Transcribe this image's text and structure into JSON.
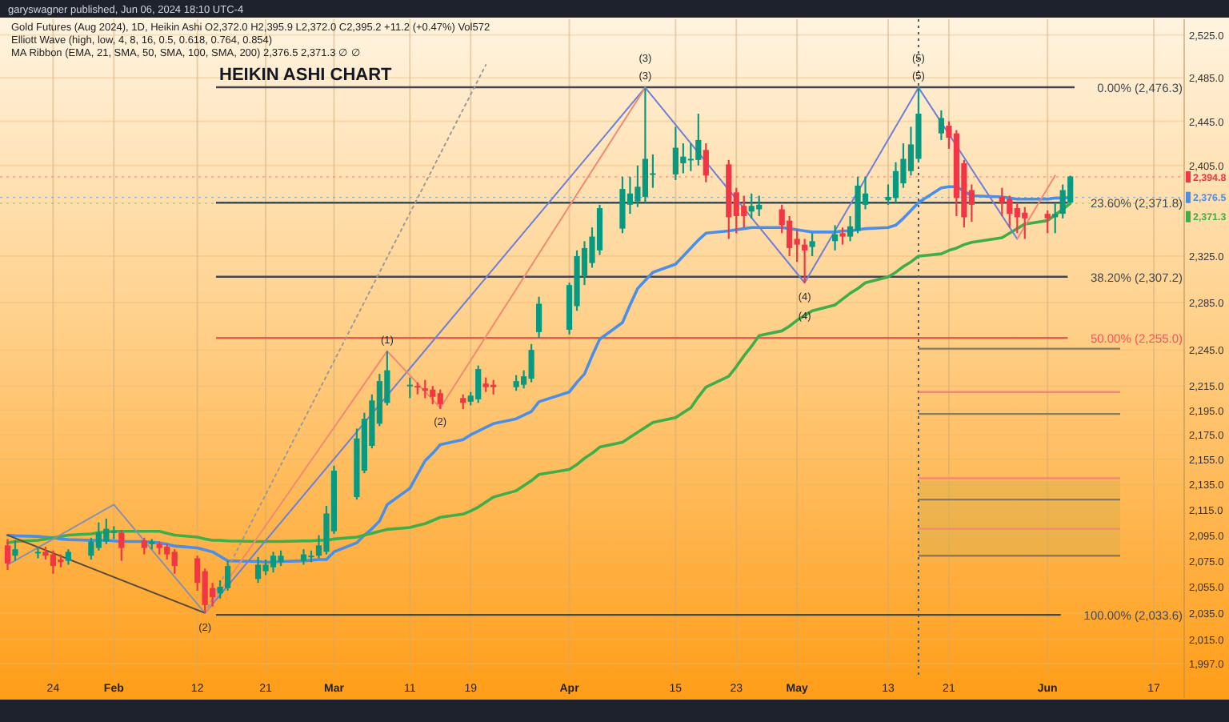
{
  "chart_data": {
    "type": "candlestick",
    "title": "HEIKIN ASHI CHART",
    "subtitle": "garyswagner published, Jun 06, 2024 18:10 UTC-4",
    "x": [
      "2024-01-18",
      "2024-01-19",
      "2024-01-22",
      "2024-01-23",
      "2024-01-24",
      "2024-01-25",
      "2024-01-26",
      "2024-01-29",
      "2024-01-30",
      "2024-01-31",
      "2024-02-01",
      "2024-02-02",
      "2024-02-05",
      "2024-02-06",
      "2024-02-07",
      "2024-02-08",
      "2024-02-09",
      "2024-02-12",
      "2024-02-13",
      "2024-02-14",
      "2024-02-15",
      "2024-02-16",
      "2024-02-20",
      "2024-02-21",
      "2024-02-22",
      "2024-02-23",
      "2024-02-26",
      "2024-02-27",
      "2024-02-28",
      "2024-02-29",
      "2024-03-01",
      "2024-03-04",
      "2024-03-05",
      "2024-03-06",
      "2024-03-07",
      "2024-03-08",
      "2024-03-11",
      "2024-03-12",
      "2024-03-13",
      "2024-03-14",
      "2024-03-15",
      "2024-03-18",
      "2024-03-19",
      "2024-03-20",
      "2024-03-21",
      "2024-03-22",
      "2024-03-25",
      "2024-03-26",
      "2024-03-27",
      "2024-03-28",
      "2024-04-01",
      "2024-04-02",
      "2024-04-03",
      "2024-04-04",
      "2024-04-05",
      "2024-04-08",
      "2024-04-09",
      "2024-04-10",
      "2024-04-11",
      "2024-04-12",
      "2024-04-15",
      "2024-04-16",
      "2024-04-17",
      "2024-04-18",
      "2024-04-19",
      "2024-04-22",
      "2024-04-23",
      "2024-04-24",
      "2024-04-25",
      "2024-04-26",
      "2024-04-29",
      "2024-04-30",
      "2024-05-01",
      "2024-05-02",
      "2024-05-03",
      "2024-05-06",
      "2024-05-07",
      "2024-05-08",
      "2024-05-09",
      "2024-05-10",
      "2024-05-13",
      "2024-05-14",
      "2024-05-15",
      "2024-05-16",
      "2024-05-17",
      "2024-05-20",
      "2024-05-21",
      "2024-05-22",
      "2024-05-23",
      "2024-05-24",
      "2024-05-28",
      "2024-05-29",
      "2024-05-30",
      "2024-05-31",
      "2024-06-03",
      "2024-06-04",
      "2024-06-05",
      "2024-06-06"
    ],
    "ohlc": [
      [
        2087,
        2092,
        2068,
        2073
      ],
      [
        2079,
        2091,
        2075,
        2084
      ],
      [
        2081,
        2086,
        2077,
        2082
      ],
      [
        2082,
        2086,
        2076,
        2079
      ],
      [
        2080,
        2083,
        2065,
        2071
      ],
      [
        2076,
        2080,
        2070,
        2074
      ],
      [
        2075,
        2084,
        2072,
        2082
      ],
      [
        2079,
        2093,
        2076,
        2090
      ],
      [
        2085,
        2105,
        2083,
        2097
      ],
      [
        2090,
        2108,
        2088,
        2100
      ],
      [
        2097,
        2102,
        2092,
        2098
      ],
      [
        2097,
        2099,
        2075,
        2085
      ],
      [
        2091,
        2093,
        2080,
        2085
      ],
      [
        2088,
        2092,
        2084,
        2090
      ],
      [
        2088,
        2090,
        2080,
        2085
      ],
      [
        2086,
        2088,
        2076,
        2080
      ],
      [
        2082,
        2084,
        2065,
        2071
      ],
      [
        2077,
        2079,
        2052,
        2058
      ],
      [
        2067,
        2069,
        2035,
        2041
      ],
      [
        2054,
        2058,
        2040,
        2047
      ],
      [
        2050,
        2060,
        2046,
        2055
      ],
      [
        2054,
        2075,
        2052,
        2071
      ],
      [
        2061,
        2078,
        2058,
        2072
      ],
      [
        2067,
        2076,
        2064,
        2072
      ],
      [
        2070,
        2082,
        2066,
        2079
      ],
      [
        2074,
        2083,
        2071,
        2079
      ],
      [
        2075,
        2084,
        2072,
        2080
      ],
      [
        2078,
        2083,
        2074,
        2079
      ],
      [
        2079,
        2095,
        2077,
        2087
      ],
      [
        2082,
        2118,
        2080,
        2112
      ],
      [
        2098,
        2150,
        2096,
        2146
      ],
      [
        2125,
        2180,
        2123,
        2172
      ],
      [
        2146,
        2193,
        2144,
        2188
      ],
      [
        2166,
        2208,
        2164,
        2203
      ],
      [
        2184,
        2225,
        2182,
        2219
      ],
      [
        2201,
        2244,
        2199,
        2228
      ],
      [
        2215,
        2222,
        2205,
        2216
      ],
      [
        2215,
        2218,
        2208,
        2214
      ],
      [
        2213,
        2220,
        2205,
        2211
      ],
      [
        2212,
        2215,
        2200,
        2206
      ],
      [
        2209,
        2212,
        2196,
        2200
      ],
      [
        2205,
        2208,
        2196,
        2201
      ],
      [
        2202,
        2210,
        2199,
        2207
      ],
      [
        2204,
        2232,
        2201,
        2229
      ],
      [
        2217,
        2222,
        2210,
        2214
      ],
      [
        2216,
        2220,
        2208,
        2214
      ],
      [
        2214,
        2224,
        2211,
        2219
      ],
      [
        2216,
        2228,
        2213,
        2223
      ],
      [
        2221,
        2250,
        2218,
        2245
      ],
      [
        2260,
        2290,
        2255,
        2284
      ],
      [
        2262,
        2302,
        2258,
        2300
      ],
      [
        2282,
        2330,
        2278,
        2325
      ],
      [
        2308,
        2338,
        2300,
        2332
      ],
      [
        2319,
        2350,
        2315,
        2342
      ],
      [
        2330,
        2370,
        2326,
        2367
      ],
      [
        2349,
        2395,
        2345,
        2384
      ],
      [
        2370,
        2395,
        2362,
        2380
      ],
      [
        2373,
        2405,
        2368,
        2386
      ],
      [
        2377,
        2476,
        2372,
        2411
      ],
      [
        2397,
        2415,
        2385,
        2398
      ],
      [
        2397,
        2440,
        2392,
        2421
      ],
      [
        2407,
        2425,
        2398,
        2413
      ],
      [
        2410,
        2425,
        2400,
        2411
      ],
      [
        2410,
        2452,
        2405,
        2428
      ],
      [
        2419,
        2425,
        2390,
        2396
      ],
      [
        2406,
        2410,
        2340,
        2359
      ],
      [
        2381,
        2385,
        2345,
        2360
      ],
      [
        2369,
        2378,
        2350,
        2360
      ],
      [
        2364,
        2380,
        2358,
        2369
      ],
      [
        2366,
        2378,
        2360,
        2370
      ],
      [
        2366,
        2370,
        2345,
        2352
      ],
      [
        2356,
        2360,
        2325,
        2332
      ],
      [
        2340,
        2348,
        2320,
        2335
      ],
      [
        2335,
        2340,
        2302,
        2330
      ],
      [
        2333,
        2345,
        2325,
        2338
      ],
      [
        2338,
        2352,
        2330,
        2344
      ],
      [
        2345,
        2350,
        2335,
        2342
      ],
      [
        2342,
        2360,
        2338,
        2351
      ],
      [
        2347,
        2395,
        2345,
        2387
      ],
      [
        2370,
        2395,
        2366,
        2380
      ],
      [
        2374,
        2388,
        2370,
        2377
      ],
      [
        2376,
        2408,
        2372,
        2400
      ],
      [
        2389,
        2425,
        2385,
        2411
      ],
      [
        2400,
        2440,
        2396,
        2424
      ],
      [
        2411,
        2476,
        2408,
        2452
      ],
      [
        2434,
        2455,
        2428,
        2448
      ],
      [
        2441,
        2445,
        2420,
        2430
      ],
      [
        2434,
        2437,
        2360,
        2376
      ],
      [
        2407,
        2410,
        2350,
        2359
      ],
      [
        2383,
        2388,
        2355,
        2370
      ],
      [
        2377,
        2385,
        2360,
        2372
      ],
      [
        2375,
        2378,
        2350,
        2362
      ],
      [
        2367,
        2372,
        2345,
        2359
      ],
      [
        2363,
        2368,
        2340,
        2358
      ],
      [
        2362,
        2365,
        2345,
        2358
      ],
      [
        2359,
        2372,
        2345,
        2362
      ],
      [
        2362,
        2388,
        2358,
        2383
      ],
      [
        2372,
        2395.9,
        2372,
        2395.2
      ]
    ],
    "series": [
      {
        "type": "line",
        "color": "#4a8fe7",
        "values": [
          2095,
          2094.5,
          2094,
          2093.5,
          2093,
          2092,
          2091.5,
          2091,
          2091,
          2091,
          2090.5,
          2090,
          2090,
          2089.5,
          2089,
          2088,
          2086.5,
          2085,
          2083.5,
          2082,
          2078.5,
          2075,
          2074.5,
          2074,
          2074,
          2074.5,
          2075,
          2075.5,
          2076,
          2076,
          2082,
          2089,
          2095,
          2100,
          2106,
          2119,
          2132,
          2143,
          2154,
          2160,
          2167,
          2171,
          2175,
          2178,
          2181,
          2184,
          2188,
          2191,
          2194,
          2202,
          2210,
          2218,
          2225,
          2240,
          2254,
          2268,
          2283,
          2297,
          2304,
          2311,
          2318,
          2325,
          2332,
          2339,
          2345,
          2347,
          2348,
          2349,
          2350,
          2350,
          2350,
          2349,
          2348,
          2347,
          2346,
          2346,
          2347,
          2347,
          2348,
          2349,
          2350,
          2352,
          2358,
          2365,
          2372,
          2385,
          2386,
          2386,
          2382,
          2378,
          2377,
          2376,
          2375,
          2375,
          2375,
          2376,
          2376,
          2376.5
        ]
      },
      {
        "type": "line",
        "color": "#3fae4a",
        "values": [
          2089,
          2090,
          2091,
          2092,
          2093,
          2094,
          2095,
          2096,
          2097,
          2097.5,
          2098,
          2098,
          2098,
          2098,
          2098,
          2096.5,
          2095,
          2093.5,
          2092,
          2091,
          2091,
          2090.5,
          2090,
          2090,
          2090,
          2090,
          2090.5,
          2090.5,
          2091,
          2091,
          2092,
          2093.5,
          2095,
          2096.5,
          2098,
          2099.5,
          2101,
          2102.5,
          2104,
          2106.5,
          2109,
          2111.5,
          2114,
          2117,
          2121,
          2125,
          2130,
          2134,
          2138,
          2143,
          2147,
          2151,
          2156,
          2160,
          2165,
          2169,
          2173,
          2177,
          2181,
          2185,
          2189,
          2193,
          2197,
          2206,
          2214,
          2223,
          2231,
          2240,
          2248,
          2257,
          2261,
          2265,
          2270,
          2274,
          2278,
          2283,
          2288,
          2293,
          2297,
          2302,
          2307,
          2311,
          2316,
          2320,
          2325,
          2327,
          2330,
          2332,
          2335,
          2337,
          2341,
          2345,
          2349,
          2353,
          2356,
          2361,
          2366,
          2371.3
        ]
      },
      {
        "type": "line",
        "color": "#6f7fd8",
        "x": [
          "2024-02-13",
          "2024-04-11",
          "2024-05-02",
          "2024-05-17",
          "2024-05-30"
        ],
        "values": [
          2035,
          2476,
          2302,
          2476,
          2340
        ]
      },
      {
        "type": "line",
        "color": "#f08a72",
        "x": [
          "2024-02-13",
          "2024-03-08",
          "2024-03-15",
          "2024-04-11"
        ],
        "values": [
          2035,
          2244,
          2197,
          2476
        ]
      },
      {
        "type": "line",
        "color": "#f08a72",
        "x": [
          "2024-05-30",
          "2024-06-04"
        ],
        "values": [
          2340,
          2396
        ]
      },
      {
        "type": "line",
        "color": "#8a8fb0",
        "x": [
          "2024-01-18",
          "2024-02-01",
          "2024-02-13"
        ],
        "values": [
          2072,
          2119,
          2035
        ]
      },
      {
        "type": "line",
        "color": "#5a4a3a",
        "x": [
          "2024-01-18",
          "2024-02-13"
        ],
        "values": [
          2095,
          2035
        ]
      },
      {
        "type": "line",
        "color": "#9a9a9a",
        "line_style": "dotted",
        "x": [
          "2024-02-13",
          "2024-03-21"
        ],
        "values": [
          2035,
          2497
        ]
      }
    ],
    "xlim": [
      "2024-01-17",
      "2024-06-21"
    ],
    "xticks": [
      {
        "value": "2024-01-24",
        "label": "24"
      },
      {
        "value": "2024-02-01",
        "label": "Feb"
      },
      {
        "value": "2024-02-12",
        "label": "12"
      },
      {
        "value": "2024-02-21",
        "label": "21"
      },
      {
        "value": "2024-03-01",
        "label": "Mar"
      },
      {
        "value": "2024-03-11",
        "label": "11"
      },
      {
        "value": "2024-03-19",
        "label": "19"
      },
      {
        "value": "2024-04-01",
        "label": "Apr"
      },
      {
        "value": "2024-04-15",
        "label": "15"
      },
      {
        "value": "2024-04-23",
        "label": "23"
      },
      {
        "value": "2024-05-01",
        "label": "May"
      },
      {
        "value": "2024-05-13",
        "label": "13"
      },
      {
        "value": "2024-05-21",
        "label": "21"
      },
      {
        "value": "2024-06-03",
        "label": "Jun"
      },
      {
        "value": "2024-06-17",
        "label": "17"
      }
    ],
    "ylim": [
      1988,
      2540
    ],
    "log": true,
    "yticks": [
      {
        "value": 2525,
        "label": "2,525.0"
      },
      {
        "value": 2485,
        "label": "2,485.0"
      },
      {
        "value": 2445,
        "label": "2,445.0"
      },
      {
        "value": 2405,
        "label": "2,405.0"
      },
      {
        "value": 2325,
        "label": "2,325.0"
      },
      {
        "value": 2285,
        "label": "2,285.0"
      },
      {
        "value": 2245,
        "label": "2,245.0"
      },
      {
        "value": 2215,
        "label": "2,215.0"
      },
      {
        "value": 2195,
        "label": "2,195.0"
      },
      {
        "value": 2175,
        "label": "2,175.0"
      },
      {
        "value": 2155,
        "label": "2,155.0"
      },
      {
        "value": 2135,
        "label": "2,135.0"
      },
      {
        "value": 2115,
        "label": "2,115.0"
      },
      {
        "value": 2095,
        "label": "2,095.0"
      },
      {
        "value": 2075,
        "label": "2,075.0"
      },
      {
        "value": 2055,
        "label": "2,055.0"
      },
      {
        "value": 2035,
        "label": "2,035.0"
      },
      {
        "value": 2015,
        "label": "2,015.0"
      },
      {
        "value": 1997,
        "label": "1,997.0"
      }
    ],
    "grid": true,
    "ref_lines": [
      {
        "axis": "y",
        "value": 2476.3,
        "label": "0.00% (2,476.3)",
        "color": "#434651"
      },
      {
        "axis": "y",
        "value": 2371.8,
        "label": "23.60% (2,371.8)",
        "color": "#434651"
      },
      {
        "axis": "y",
        "value": 2307.2,
        "label": "38.20% (2,307.2)",
        "color": "#434651"
      },
      {
        "axis": "y",
        "value": 2255.0,
        "label": "50.00% (2,255.0)",
        "color": "#f2545b"
      },
      {
        "axis": "y",
        "value": 2033.6,
        "label": "100.00% (2,033.6)",
        "color": "#434651"
      },
      {
        "axis": "x",
        "value": "2024-05-17",
        "color": "#555555",
        "line_style": "dotted"
      },
      {
        "axis": "y",
        "value": 2394.8,
        "label": "2,394.8",
        "color": "#f23645",
        "line_style": "dotted"
      },
      {
        "axis": "y",
        "value": 2376.5,
        "label": "2,376.5",
        "color": "#4a8fe7",
        "line_style": "dotted"
      },
      {
        "axis": "y",
        "value": 2371.3,
        "label": "2,371.3",
        "color": "#3fae4a",
        "line_style": "dotted"
      },
      {
        "axis": "y",
        "value": 2246,
        "color": "#8a7a60"
      },
      {
        "axis": "y",
        "value": 2210,
        "color": "#f08a72"
      },
      {
        "axis": "y",
        "value": 2192,
        "color": "#8a7a60"
      },
      {
        "axis": "y",
        "value": 2140,
        "color": "#f08a72"
      },
      {
        "axis": "y",
        "value": 2123,
        "color": "#8a7a60"
      },
      {
        "axis": "y",
        "value": 2100,
        "color": "#f08a72"
      },
      {
        "axis": "y",
        "value": 2079,
        "color": "#8a7a60"
      }
    ],
    "bands": [
      {
        "axis": "y",
        "from": 2079,
        "to": 2138,
        "color": "#d9b04c"
      }
    ],
    "annotations": [
      "Gold Futures (Aug 2024), 1D, Heikin Ashi O2,372.0 H2,395.9 L2,372.0 C2,395.2 +11.2 (+0.47%) Vol572",
      "Elliott Wave (high, low, 4, 8, 16, 0.5, 0.618, 0.764, 0.854)",
      "MA Ribbon (EMA, 21, SMA, 50, SMA, 100, SMA, 200) 2,376.5 2,371.3 ∅ ∅",
      {
        "text": "(2)",
        "x": "2024-02-13",
        "y": 2035
      },
      {
        "text": "(1)",
        "x": "2024-03-08",
        "y": 2244
      },
      {
        "text": "(2)",
        "x": "2024-03-15",
        "y": 2197
      },
      {
        "text": "(3)",
        "x": "2024-04-11",
        "y": 2476
      },
      {
        "text": "(3)",
        "x": "2024-04-11",
        "y": 2476
      },
      {
        "text": "(4)",
        "x": "2024-05-02",
        "y": 2302
      },
      {
        "text": "(4)",
        "x": "2024-05-02",
        "y": 2302
      },
      {
        "text": "(5)",
        "x": "2024-05-17",
        "y": 2476
      },
      {
        "text": "(5)",
        "x": "2024-05-17",
        "y": 2476
      }
    ]
  }
}
